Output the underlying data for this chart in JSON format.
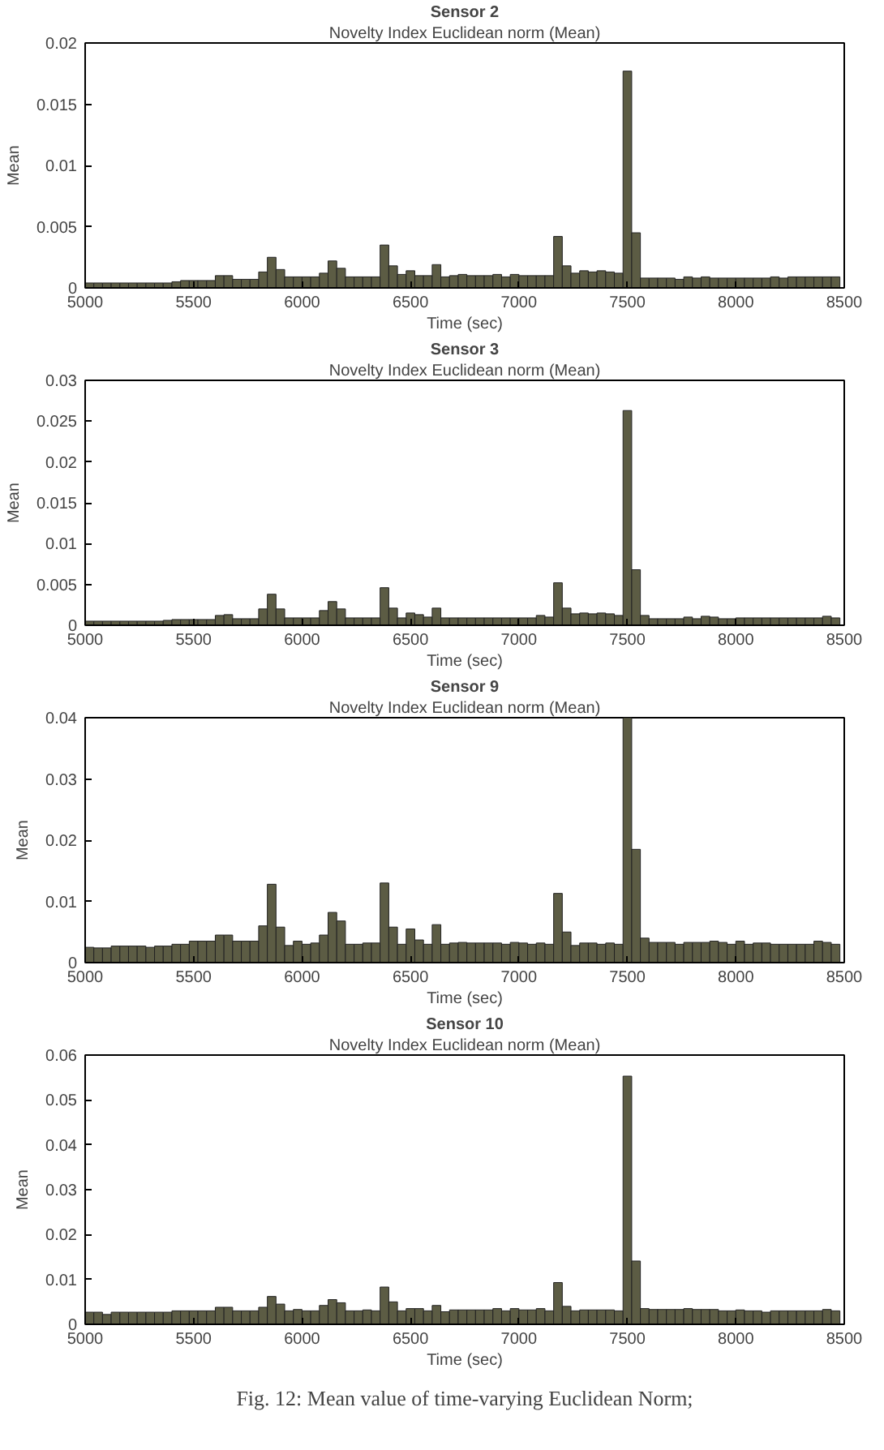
{
  "chart_data": [
    {
      "type": "bar",
      "title": "Sensor 2",
      "subtitle": "Novelty Index Euclidean norm (Mean)",
      "xlabel": "Time (sec)",
      "ylabel": "Mean",
      "color": "#5c5c44",
      "grid": false,
      "x": [
        5020,
        5060,
        5100,
        5140,
        5180,
        5220,
        5260,
        5300,
        5340,
        5380,
        5420,
        5460,
        5500,
        5540,
        5580,
        5620,
        5660,
        5700,
        5740,
        5780,
        5820,
        5860,
        5900,
        5940,
        5980,
        6020,
        6060,
        6100,
        6140,
        6180,
        6220,
        6260,
        6300,
        6340,
        6380,
        6420,
        6460,
        6500,
        6540,
        6580,
        6620,
        6660,
        6700,
        6740,
        6780,
        6820,
        6860,
        6900,
        6940,
        6980,
        7020,
        7060,
        7100,
        7140,
        7180,
        7220,
        7260,
        7300,
        7340,
        7380,
        7420,
        7460,
        7500,
        7540,
        7580,
        7620,
        7660,
        7700,
        7740,
        7780,
        7820,
        7860,
        7900,
        7940,
        7980,
        8020,
        8060,
        8100,
        8140,
        8180,
        8220,
        8260,
        8300,
        8340,
        8380,
        8420,
        8460
      ],
      "xlim": [
        5000,
        8500
      ],
      "xticks": [
        5000,
        5500,
        6000,
        6500,
        7000,
        7500,
        8000,
        8500
      ],
      "ylim": [
        0,
        0.02
      ],
      "yticks": [
        0,
        0.005,
        0.01,
        0.015,
        0.02
      ],
      "values": [
        0.0004,
        0.0004,
        0.0004,
        0.0004,
        0.0004,
        0.0004,
        0.0004,
        0.0004,
        0.0004,
        0.0004,
        0.0005,
        0.0006,
        0.0006,
        0.0006,
        0.0006,
        0.001,
        0.001,
        0.0007,
        0.0007,
        0.0007,
        0.0013,
        0.0025,
        0.0015,
        0.0009,
        0.0009,
        0.0009,
        0.0009,
        0.0012,
        0.0022,
        0.0016,
        0.0009,
        0.0009,
        0.0009,
        0.0009,
        0.0035,
        0.0018,
        0.0011,
        0.0014,
        0.001,
        0.001,
        0.0019,
        0.0009,
        0.001,
        0.0011,
        0.001,
        0.001,
        0.001,
        0.0011,
        0.0009,
        0.0011,
        0.001,
        0.001,
        0.001,
        0.001,
        0.0042,
        0.0018,
        0.0012,
        0.0014,
        0.0013,
        0.0014,
        0.0013,
        0.0012,
        0.0177,
        0.0045,
        0.0008,
        0.0008,
        0.0008,
        0.0008,
        0.0007,
        0.0009,
        0.0008,
        0.0009,
        0.0008,
        0.0008,
        0.0008,
        0.0008,
        0.0008,
        0.0008,
        0.0008,
        0.0009,
        0.0008,
        0.0009,
        0.0009,
        0.0009,
        0.0009,
        0.0009,
        0.0009
      ]
    },
    {
      "type": "bar",
      "title": "Sensor 3",
      "subtitle": "Novelty Index Euclidean norm (Mean)",
      "xlabel": "Time (sec)",
      "ylabel": "Mean",
      "color": "#5c5c44",
      "grid": false,
      "x": [
        5020,
        5060,
        5100,
        5140,
        5180,
        5220,
        5260,
        5300,
        5340,
        5380,
        5420,
        5460,
        5500,
        5540,
        5580,
        5620,
        5660,
        5700,
        5740,
        5780,
        5820,
        5860,
        5900,
        5940,
        5980,
        6020,
        6060,
        6100,
        6140,
        6180,
        6220,
        6260,
        6300,
        6340,
        6380,
        6420,
        6460,
        6500,
        6540,
        6580,
        6620,
        6660,
        6700,
        6740,
        6780,
        6820,
        6860,
        6900,
        6940,
        6980,
        7020,
        7060,
        7100,
        7140,
        7180,
        7220,
        7260,
        7300,
        7340,
        7380,
        7420,
        7460,
        7500,
        7540,
        7580,
        7620,
        7660,
        7700,
        7740,
        7780,
        7820,
        7860,
        7900,
        7940,
        7980,
        8020,
        8060,
        8100,
        8140,
        8180,
        8220,
        8260,
        8300,
        8340,
        8380,
        8420,
        8460
      ],
      "xlim": [
        5000,
        8500
      ],
      "xticks": [
        5000,
        5500,
        6000,
        6500,
        7000,
        7500,
        8000,
        8500
      ],
      "ylim": [
        0,
        0.03
      ],
      "yticks": [
        0,
        0.005,
        0.01,
        0.015,
        0.02,
        0.025,
        0.03
      ],
      "values": [
        0.0005,
        0.0005,
        0.0005,
        0.0005,
        0.0005,
        0.0005,
        0.0005,
        0.0005,
        0.0005,
        0.0006,
        0.0007,
        0.0007,
        0.0007,
        0.0007,
        0.0007,
        0.0012,
        0.0013,
        0.0008,
        0.0008,
        0.0008,
        0.002,
        0.0038,
        0.002,
        0.0009,
        0.0009,
        0.0009,
        0.0009,
        0.0018,
        0.0029,
        0.002,
        0.0009,
        0.0009,
        0.0009,
        0.0009,
        0.0046,
        0.0021,
        0.0009,
        0.0015,
        0.0013,
        0.001,
        0.0021,
        0.0009,
        0.0009,
        0.0009,
        0.0009,
        0.0009,
        0.0009,
        0.0009,
        0.0009,
        0.0009,
        0.0009,
        0.0009,
        0.0012,
        0.001,
        0.0052,
        0.0021,
        0.0014,
        0.0015,
        0.0014,
        0.0015,
        0.0014,
        0.0012,
        0.0263,
        0.0068,
        0.0012,
        0.0008,
        0.0008,
        0.0008,
        0.0008,
        0.001,
        0.0008,
        0.0011,
        0.001,
        0.0008,
        0.0008,
        0.0009,
        0.0009,
        0.0009,
        0.0009,
        0.0009,
        0.0009,
        0.0009,
        0.0009,
        0.0009,
        0.0009,
        0.0011,
        0.0009
      ]
    },
    {
      "type": "bar",
      "title": "Sensor 9",
      "subtitle": "Novelty Index Euclidean norm (Mean)",
      "xlabel": "Time (sec)",
      "ylabel": "Mean",
      "color": "#5c5c44",
      "grid": false,
      "x": [
        5020,
        5060,
        5100,
        5140,
        5180,
        5220,
        5260,
        5300,
        5340,
        5380,
        5420,
        5460,
        5500,
        5540,
        5580,
        5620,
        5660,
        5700,
        5740,
        5780,
        5820,
        5860,
        5900,
        5940,
        5980,
        6020,
        6060,
        6100,
        6140,
        6180,
        6220,
        6260,
        6300,
        6340,
        6380,
        6420,
        6460,
        6500,
        6540,
        6580,
        6620,
        6660,
        6700,
        6740,
        6780,
        6820,
        6860,
        6900,
        6940,
        6980,
        7020,
        7060,
        7100,
        7140,
        7180,
        7220,
        7260,
        7300,
        7340,
        7380,
        7420,
        7460,
        7500,
        7540,
        7580,
        7620,
        7660,
        7700,
        7740,
        7780,
        7820,
        7860,
        7900,
        7940,
        7980,
        8020,
        8060,
        8100,
        8140,
        8180,
        8220,
        8260,
        8300,
        8340,
        8380,
        8420,
        8460
      ],
      "xlim": [
        5000,
        8500
      ],
      "xticks": [
        5000,
        5500,
        6000,
        6500,
        7000,
        7500,
        8000,
        8500
      ],
      "ylim": [
        0,
        0.04
      ],
      "yticks": [
        0,
        0.01,
        0.02,
        0.03,
        0.04
      ],
      "values": [
        0.0025,
        0.0024,
        0.0024,
        0.0027,
        0.0027,
        0.0027,
        0.0027,
        0.0025,
        0.0027,
        0.0027,
        0.003,
        0.003,
        0.0035,
        0.0035,
        0.0035,
        0.0045,
        0.0045,
        0.0035,
        0.0035,
        0.0035,
        0.006,
        0.0128,
        0.0058,
        0.0028,
        0.0035,
        0.003,
        0.0032,
        0.0045,
        0.0082,
        0.0068,
        0.003,
        0.003,
        0.0032,
        0.0032,
        0.013,
        0.0058,
        0.003,
        0.0055,
        0.0037,
        0.003,
        0.0062,
        0.003,
        0.0032,
        0.0033,
        0.0032,
        0.0032,
        0.0032,
        0.0032,
        0.003,
        0.0033,
        0.0032,
        0.003,
        0.0032,
        0.003,
        0.0113,
        0.005,
        0.0028,
        0.0032,
        0.0032,
        0.003,
        0.0032,
        0.003,
        0.04,
        0.0185,
        0.004,
        0.0033,
        0.0033,
        0.0033,
        0.003,
        0.0033,
        0.0033,
        0.0033,
        0.0035,
        0.0033,
        0.003,
        0.0035,
        0.003,
        0.0032,
        0.0032,
        0.003,
        0.003,
        0.003,
        0.003,
        0.003,
        0.0035,
        0.0033,
        0.003
      ]
    },
    {
      "type": "bar",
      "title": "Sensor 10",
      "subtitle": "Novelty Index Euclidean norm (Mean)",
      "xlabel": "Time (sec)",
      "ylabel": "Mean",
      "color": "#5c5c44",
      "grid": false,
      "x": [
        5020,
        5060,
        5100,
        5140,
        5180,
        5220,
        5260,
        5300,
        5340,
        5380,
        5420,
        5460,
        5500,
        5540,
        5580,
        5620,
        5660,
        5700,
        5740,
        5780,
        5820,
        5860,
        5900,
        5940,
        5980,
        6020,
        6060,
        6100,
        6140,
        6180,
        6220,
        6260,
        6300,
        6340,
        6380,
        6420,
        6460,
        6500,
        6540,
        6580,
        6620,
        6660,
        6700,
        6740,
        6780,
        6820,
        6860,
        6900,
        6940,
        6980,
        7020,
        7060,
        7100,
        7140,
        7180,
        7220,
        7260,
        7300,
        7340,
        7380,
        7420,
        7460,
        7500,
        7540,
        7580,
        7620,
        7660,
        7700,
        7740,
        7780,
        7820,
        7860,
        7900,
        7940,
        7980,
        8020,
        8060,
        8100,
        8140,
        8180,
        8220,
        8260,
        8300,
        8340,
        8380,
        8420,
        8460
      ],
      "xlim": [
        5000,
        8500
      ],
      "xticks": [
        5000,
        5500,
        6000,
        6500,
        7000,
        7500,
        8000,
        8500
      ],
      "ylim": [
        0,
        0.06
      ],
      "yticks": [
        0,
        0.01,
        0.02,
        0.03,
        0.04,
        0.05,
        0.06
      ],
      "annotations": [
        "Fig. 12: Mean value of time-varying Euclidean Norm;"
      ],
      "values": [
        0.0027,
        0.0027,
        0.0022,
        0.0027,
        0.0027,
        0.0027,
        0.0027,
        0.0027,
        0.0027,
        0.0027,
        0.003,
        0.003,
        0.003,
        0.003,
        0.003,
        0.0038,
        0.0038,
        0.003,
        0.003,
        0.003,
        0.0038,
        0.0062,
        0.0045,
        0.003,
        0.0033,
        0.003,
        0.003,
        0.0042,
        0.0055,
        0.0048,
        0.003,
        0.003,
        0.0032,
        0.003,
        0.0083,
        0.005,
        0.003,
        0.0035,
        0.0035,
        0.003,
        0.0042,
        0.0028,
        0.0032,
        0.0032,
        0.0032,
        0.0032,
        0.0032,
        0.0035,
        0.003,
        0.0035,
        0.0032,
        0.0032,
        0.0035,
        0.003,
        0.0093,
        0.004,
        0.003,
        0.0032,
        0.0032,
        0.0032,
        0.0032,
        0.003,
        0.0553,
        0.0141,
        0.0035,
        0.0033,
        0.0033,
        0.0033,
        0.0033,
        0.0035,
        0.0033,
        0.0033,
        0.0033,
        0.003,
        0.003,
        0.0032,
        0.003,
        0.003,
        0.0027,
        0.003,
        0.003,
        0.003,
        0.003,
        0.003,
        0.003,
        0.0033,
        0.003
      ]
    }
  ]
}
